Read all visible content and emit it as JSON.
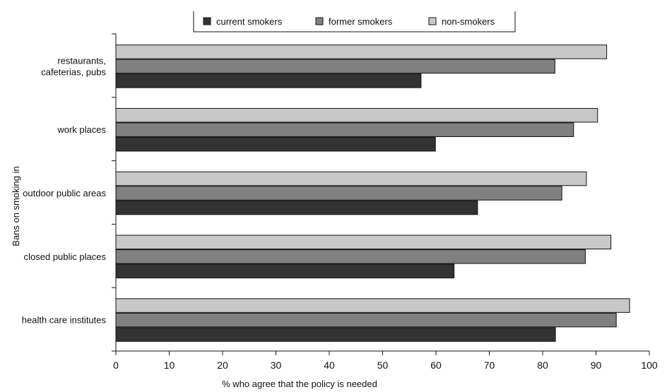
{
  "chart_data": {
    "type": "bar",
    "orientation": "horizontal",
    "categories": [
      [
        "restaurants,",
        "cafeterias, pubs"
      ],
      [
        "work places"
      ],
      [
        "outdoor public areas"
      ],
      [
        "closed public places"
      ],
      [
        "health care institutes"
      ]
    ],
    "series": [
      {
        "name": "non-smokers",
        "color": "#c8c8c8",
        "values": [
          92,
          90.3,
          88.2,
          92.8,
          96.3
        ]
      },
      {
        "name": "former smokers",
        "color": "#808080",
        "values": [
          82.3,
          85.8,
          83.6,
          88,
          93.8
        ]
      },
      {
        "name": "current smokers",
        "color": "#333333",
        "values": [
          57.2,
          59.9,
          67.8,
          63.4,
          82.4
        ]
      }
    ],
    "legend_order": [
      "current smokers",
      "former smokers",
      "non-smokers"
    ],
    "xlabel": "% who agree that the policy is needed",
    "ylabel": "Bans on smoking in",
    "xlim": [
      0,
      100
    ],
    "xticks": [
      0,
      10,
      20,
      30,
      40,
      50,
      60,
      70,
      80,
      90,
      100
    ],
    "grid": false,
    "legend_position": "top"
  }
}
